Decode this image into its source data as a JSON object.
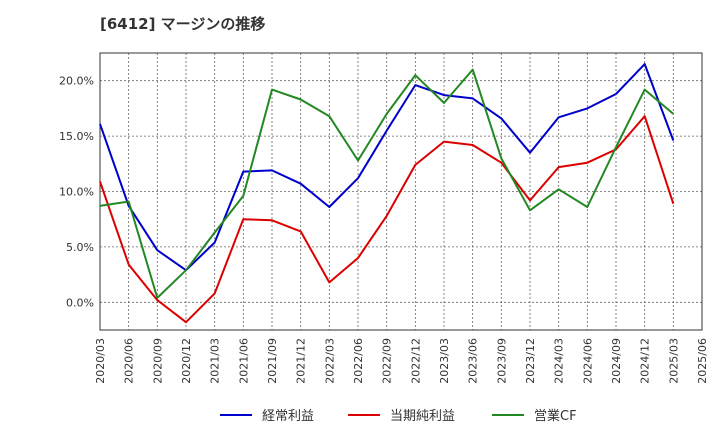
{
  "chart_data": {
    "type": "line",
    "title": "[6412]  マージンの推移",
    "x": [
      "2020/03",
      "2020/06",
      "2020/09",
      "2020/12",
      "2021/03",
      "2021/06",
      "2021/09",
      "2021/12",
      "2022/03",
      "2022/06",
      "2022/09",
      "2022/12",
      "2023/03",
      "2023/06",
      "2023/09",
      "2023/12",
      "2024/03",
      "2024/06",
      "2024/09",
      "2024/12",
      "2025/03",
      "2025/06"
    ],
    "ylim": [
      -2.5,
      22.5
    ],
    "yticks": [
      0,
      5,
      10,
      15,
      20
    ],
    "ytick_labels": [
      "0.0%",
      "5.0%",
      "10.0%",
      "15.0%",
      "20.0%"
    ],
    "grid": true,
    "legend": "bottom",
    "series": [
      {
        "name": "経常利益",
        "color": "#0000cc",
        "values": [
          16.1,
          8.7,
          4.7,
          2.9,
          5.4,
          11.8,
          11.9,
          10.7,
          8.6,
          11.2,
          15.5,
          19.6,
          18.7,
          18.4,
          16.6,
          13.5,
          16.7,
          17.5,
          18.8,
          21.5,
          14.6,
          null
        ]
      },
      {
        "name": "当期純利益",
        "color": "#dd0000",
        "values": [
          10.9,
          3.4,
          0.2,
          -1.8,
          0.8,
          7.5,
          7.4,
          6.4,
          1.8,
          4.0,
          7.8,
          12.4,
          14.5,
          14.2,
          12.6,
          9.2,
          12.2,
          12.6,
          13.8,
          16.8,
          8.9,
          null
        ]
      },
      {
        "name": "営業CF",
        "color": "#228822",
        "values": [
          8.7,
          9.1,
          0.4,
          2.9,
          6.3,
          9.6,
          19.2,
          18.3,
          16.8,
          12.8,
          17.0,
          20.5,
          18.0,
          21.0,
          13.0,
          8.3,
          10.2,
          8.6,
          14.0,
          19.2,
          17.0,
          null
        ]
      }
    ]
  }
}
